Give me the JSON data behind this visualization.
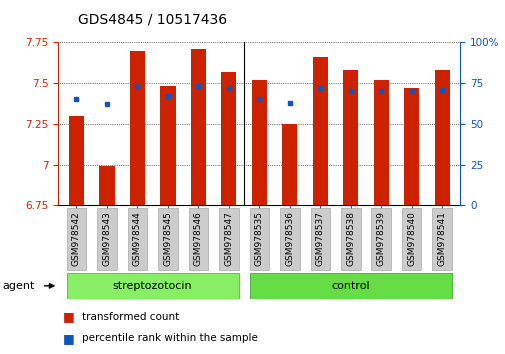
{
  "title": "GDS4845 / 10517436",
  "samples": [
    "GSM978542",
    "GSM978543",
    "GSM978544",
    "GSM978545",
    "GSM978546",
    "GSM978547",
    "GSM978535",
    "GSM978536",
    "GSM978537",
    "GSM978538",
    "GSM978539",
    "GSM978540",
    "GSM978541"
  ],
  "red_values": [
    7.3,
    6.99,
    7.7,
    7.48,
    7.71,
    7.57,
    7.52,
    7.25,
    7.66,
    7.58,
    7.52,
    7.47,
    7.58
  ],
  "blue_values": [
    65,
    62,
    73,
    67,
    73,
    72,
    65,
    63,
    72,
    70,
    70,
    70,
    71
  ],
  "ymin": 6.75,
  "ymax": 7.75,
  "y2min": 0,
  "y2max": 100,
  "yticks": [
    6.75,
    7.0,
    7.25,
    7.5,
    7.75
  ],
  "ytick_labels": [
    "6.75",
    "7",
    "7.25",
    "7.5",
    "7.75"
  ],
  "y2ticks": [
    0,
    25,
    50,
    75,
    100
  ],
  "y2ticklabels": [
    "0",
    "25",
    "50",
    "75",
    "100%"
  ],
  "group1_label": "streptozotocin",
  "group2_label": "control",
  "separator_after": 5,
  "bar_color": "#cc2200",
  "blue_color": "#1155bb",
  "group1_color": "#88ee66",
  "group2_color": "#66dd44",
  "tick_bg_color": "#cccccc",
  "agent_label": "agent",
  "legend1": "transformed count",
  "legend2": "percentile rank within the sample",
  "bar_width": 0.5,
  "title_fontsize": 10,
  "tick_fontsize": 7.5,
  "xtick_fontsize": 6.5,
  "background_color": "#ffffff"
}
